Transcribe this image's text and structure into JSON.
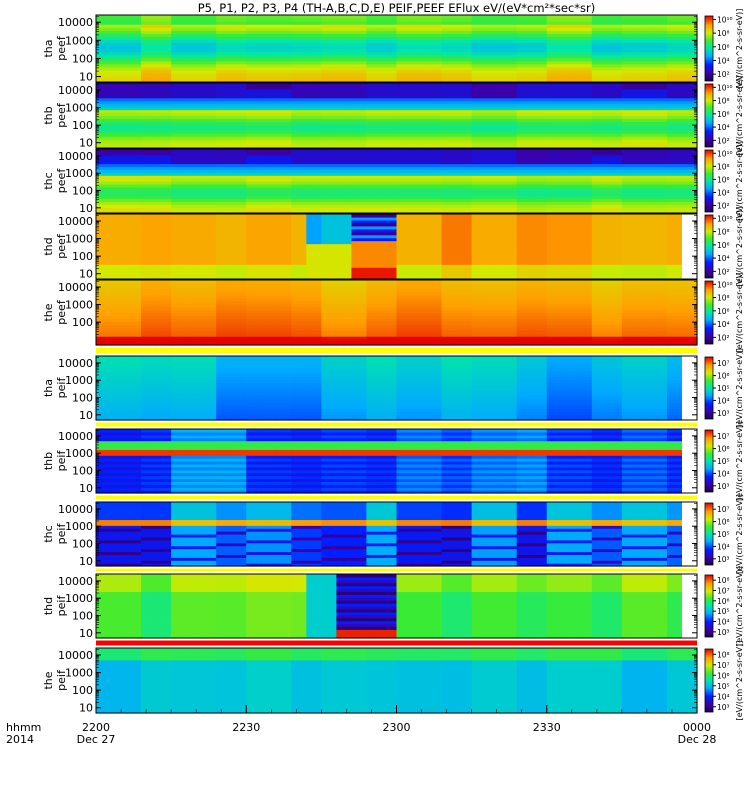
{
  "title": "P5, P1, P2, P3, P4 (TH-A,B,C,D,E) PEIF,PEEF EFlux eV/(eV*cm²*sec*sr)",
  "time_axis": {
    "row1_label": "hhmm",
    "row2_label": "2014",
    "ticks": [
      {
        "time": "2200",
        "date": "Dec 27"
      },
      {
        "time": "2230",
        "date": ""
      },
      {
        "time": "2300",
        "date": ""
      },
      {
        "time": "2330",
        "date": ""
      },
      {
        "time": "0000",
        "date": "Dec 28"
      }
    ]
  },
  "colorbar_units_text": "[eV/(cm^2-s-sr-eV)]",
  "panels": [
    {
      "label_line1": "tha",
      "label_line2": "peef",
      "y_ticks": [
        "10",
        "100",
        "1000",
        "10000"
      ],
      "cbar_ticks": [
        "10²",
        "10⁴",
        "10⁶",
        "10⁸",
        "10¹⁰"
      ],
      "cbar_log_range": [
        1,
        10.5
      ],
      "flux_log_range": [
        3,
        10
      ]
    },
    {
      "label_line1": "thb",
      "label_line2": "peef",
      "y_ticks": [
        "10",
        "100",
        "1000",
        "10000"
      ],
      "cbar_ticks": [
        "10²",
        "10⁴",
        "10⁶",
        "10⁸",
        "10¹⁰"
      ],
      "cbar_log_range": [
        1,
        10.5
      ],
      "flux_log_range": [
        3,
        10
      ]
    },
    {
      "label_line1": "thc",
      "label_line2": "peef",
      "y_ticks": [
        "10",
        "100",
        "1000",
        "10000"
      ],
      "cbar_ticks": [
        "10²",
        "10⁴",
        "10⁶",
        "10⁸",
        "10¹⁰"
      ],
      "cbar_log_range": [
        1,
        10.5
      ],
      "flux_log_range": [
        3,
        10
      ]
    },
    {
      "label_line1": "thd",
      "label_line2": "peef",
      "y_ticks": [
        "10",
        "100",
        "1000",
        "10000"
      ],
      "cbar_ticks": [
        "10²",
        "10⁴",
        "10⁶",
        "10⁸",
        "10¹⁰"
      ],
      "cbar_log_range": [
        1,
        10.5
      ],
      "flux_log_range": [
        3,
        10
      ]
    },
    {
      "label_line1": "the",
      "label_line2": "peef",
      "y_ticks": [
        "100",
        "1000",
        "10000"
      ],
      "cbar_ticks": [
        "10²",
        "10⁴",
        "10⁶",
        "10⁸",
        "10¹⁰"
      ],
      "cbar_log_range": [
        1,
        10.5
      ],
      "flux_log_range": [
        3,
        10
      ]
    },
    {
      "label_line1": "tha",
      "label_line2": "peif",
      "y_ticks": [
        "10",
        "100",
        "1000",
        "10000"
      ],
      "cbar_ticks": [
        "10³",
        "10⁴",
        "10⁵",
        "10⁶",
        "10⁷"
      ],
      "cbar_log_range": [
        2.5,
        7.5
      ],
      "flux_log_range": [
        3,
        7.5
      ]
    },
    {
      "label_line1": "thb",
      "label_line2": "peif",
      "y_ticks": [
        "10",
        "100",
        "1000",
        "10000"
      ],
      "cbar_ticks": [
        "10³",
        "10⁴",
        "10⁵",
        "10⁶",
        "10⁷"
      ],
      "cbar_log_range": [
        2.5,
        7.5
      ],
      "flux_log_range": [
        3,
        7.5
      ]
    },
    {
      "label_line1": "thc",
      "label_line2": "peif",
      "y_ticks": [
        "10",
        "100",
        "1000",
        "10000"
      ],
      "cbar_ticks": [
        "10³",
        "10⁴",
        "10⁵",
        "10⁶",
        "10⁷"
      ],
      "cbar_log_range": [
        2.5,
        7.5
      ],
      "flux_log_range": [
        3,
        7.5
      ]
    },
    {
      "label_line1": "thd",
      "label_line2": "peif",
      "y_ticks": [
        "10",
        "100",
        "1000",
        "10000"
      ],
      "cbar_ticks": [
        "10³",
        "10⁴",
        "10⁵",
        "10⁶",
        "10⁷",
        "10⁸"
      ],
      "cbar_log_range": [
        2.5,
        8.5
      ],
      "flux_log_range": [
        3,
        8.5
      ]
    },
    {
      "label_line1": "the",
      "label_line2": "peif",
      "y_ticks": [
        "10",
        "100",
        "1000",
        "10000"
      ],
      "cbar_ticks": [
        "10³",
        "10⁴",
        "10⁵",
        "10⁶",
        "10⁷",
        "10⁸"
      ],
      "cbar_log_range": [
        2.5,
        8.5
      ],
      "flux_log_range": [
        3,
        8.5
      ]
    }
  ],
  "chart_data": {
    "type": "heatmap",
    "title": "P5, P1, P2, P3, P4 (TH-A,B,C,D,E) PEIF,PEEF EFlux eV/(eV*cm²*sec*sr)",
    "x_range": [
      "2014-12-27 22:00",
      "2014-12-28 00:00"
    ],
    "y_scale": "log",
    "energy_range_eV": [
      5,
      25000
    ],
    "x_tick_labels": [
      "2200",
      "2230",
      "2300",
      "2330",
      "0000"
    ],
    "colormap": "rainbow",
    "panels": [
      "tha peef",
      "thb peef",
      "thc peef",
      "thd peef",
      "the peef",
      "tha peif",
      "thb peif",
      "thc peif",
      "thd peif",
      "the peif"
    ]
  }
}
